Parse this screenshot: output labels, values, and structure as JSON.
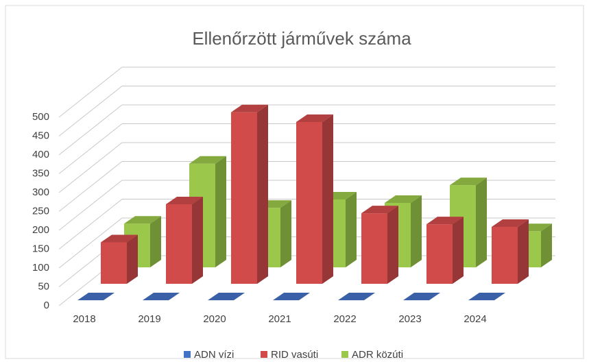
{
  "chart_data": {
    "type": "bar3d",
    "title": "Ellenőrzött járművek száma",
    "categories": [
      "2018",
      "2019",
      "2020",
      "2021",
      "2022",
      "2023",
      "2024"
    ],
    "series": [
      {
        "name": "ADN vízi",
        "color": "#4472c4",
        "values": [
          0,
          0,
          0,
          0,
          0,
          0,
          0
        ]
      },
      {
        "name": "RID vasúti",
        "color": "#d24b4b",
        "values": [
          110,
          211,
          455,
          429,
          187,
          158,
          151
        ]
      },
      {
        "name": "ADR közúti",
        "color": "#9bc84a",
        "values": [
          116,
          275,
          158,
          180,
          171,
          218,
          96
        ]
      }
    ],
    "ylim": [
      0,
      500
    ],
    "yticks": [
      0,
      50,
      100,
      150,
      200,
      250,
      300,
      350,
      400,
      450,
      500
    ],
    "grid": true,
    "legend": "bottom"
  }
}
